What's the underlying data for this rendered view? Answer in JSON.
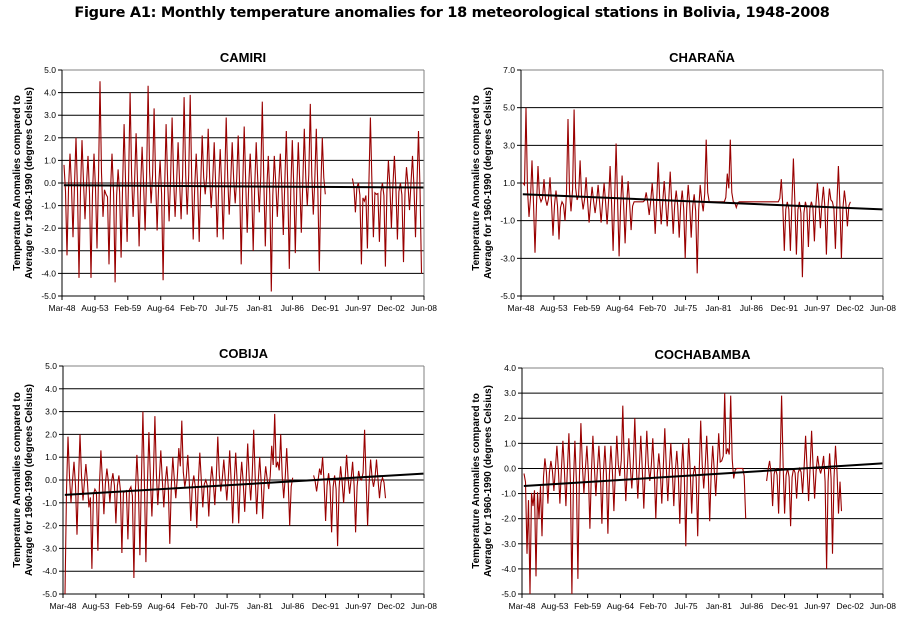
{
  "figure_title": "Figure A1: Monthly temperature anomalies for 18 meteorological stations in Bolivia, 1948-2008",
  "colors": {
    "series": "#990000",
    "trend": "#000000",
    "grid": "#000000",
    "frame": "#808080"
  },
  "chart_data": [
    {
      "type": "line",
      "title": "CAMIRI",
      "ylabel": [
        "Temperature Anomalies compared to",
        "Average for 1960-1990 (degrees Celsius)"
      ],
      "xlabel": "",
      "x_ticks": [
        "Mar-48",
        "Aug-53",
        "Feb-59",
        "Aug-64",
        "Feb-70",
        "Jul-75",
        "Jan-81",
        "Jul-86",
        "Dec-91",
        "Jun-97",
        "Dec-02",
        "Jun-08"
      ],
      "x_range": [
        "Mar-48",
        "Jun-08"
      ],
      "ylim": [
        -5.0,
        5.0
      ],
      "y_ticks": [
        "5.0",
        "4.0",
        "3.0",
        "2.0",
        "1.0",
        "0.0",
        "-1.0",
        "-2.0",
        "-3.0",
        "-4.0",
        "-5.0"
      ],
      "grid": true,
      "series": [
        {
          "name": "Monthly anomaly",
          "x_start_year": 1948.5,
          "step_years": 0.5,
          "values": [
            0.8,
            -3.2,
            1.3,
            -2.4,
            2.0,
            -4.2,
            1.9,
            -1.6,
            1.2,
            -4.2,
            1.3,
            -2.9,
            4.5,
            -1.5,
            -0.5,
            -3.6,
            1.3,
            -4.4,
            0.6,
            -3.3,
            2.6,
            -2.6,
            4.0,
            -1.5,
            2.2,
            -2.8,
            1.6,
            -2.1,
            4.3,
            -0.9,
            3.3,
            -2.1,
            1.0,
            -4.3,
            2.6,
            -1.7,
            2.9,
            -1.5,
            1.8,
            -1.6,
            3.8,
            -1.4,
            3.9,
            -2.5,
            1.3,
            -2.6,
            2.1,
            -0.5,
            2.4,
            -1.1,
            1.8,
            -2.4,
            1.5,
            -2.5,
            2.9,
            -1.4,
            1.8,
            -0.9,
            2.1,
            -3.6,
            2.5,
            -2.2,
            1.3,
            -3.0,
            1.8,
            -1.3,
            3.6,
            -2.8,
            1.2,
            -4.8,
            1.2,
            -1.5,
            1.3,
            -2.3,
            2.3,
            -3.8,
            1.9,
            -3.1,
            1.8,
            -2.2,
            2.4,
            -1.0,
            3.5,
            -1.4,
            2.4,
            -3.9,
            2.0,
            -0.5,
            null,
            null,
            null,
            null,
            null,
            null,
            null,
            null,
            0.2,
            -1.3,
            0.0,
            -3.6,
            -0.8,
            -2.9,
            2.9,
            -2.4,
            -0.5,
            -2.6,
            0.0,
            -3.7,
            1.0,
            -2.0,
            1.2,
            -2.5,
            0.0,
            -3.5,
            0.7,
            -1.2,
            1.2,
            -2.4,
            2.3,
            -4.0,
            1.8,
            -4.3,
            0.3,
            -3.1,
            -2.5
          ]
        }
      ],
      "trend": {
        "start": -0.1,
        "end": -0.2
      }
    },
    {
      "type": "line",
      "title": "CHARAÑA",
      "ylabel": [
        "Temperature Anomalies compared to",
        "Average for 1960-1990 (degrees Celsius)"
      ],
      "xlabel": "",
      "x_ticks": [
        "Mar-48",
        "Aug-53",
        "Feb-59",
        "Aug-64",
        "Feb-70",
        "Jul-75",
        "Jan-81",
        "Jul-86",
        "Dec-91",
        "Jun-97",
        "Dec-02",
        "Jun-08"
      ],
      "x_range": [
        "Mar-48",
        "Jun-08"
      ],
      "ylim": [
        -5.0,
        7.0
      ],
      "y_ticks": [
        "7.0",
        "5.0",
        "3.0",
        "1.0",
        "-1.0",
        "-3.0",
        "-5.0"
      ],
      "grid": true,
      "series": [
        {
          "name": "Monthly anomaly",
          "x_start_year": 1948.5,
          "step_years": 0.5,
          "values": [
            1.0,
            5.0,
            -0.8,
            2.2,
            -2.7,
            1.9,
            0.0,
            1.2,
            -0.2,
            1.3,
            -1.8,
            0.6,
            -2.0,
            0.0,
            -1.0,
            4.4,
            -0.5,
            4.9,
            0.1,
            2.2,
            -0.4,
            1.3,
            -1.1,
            0.8,
            -0.6,
            0.9,
            -1.1,
            1.0,
            -1.2,
            1.9,
            -2.6,
            3.1,
            -2.9,
            1.4,
            -2.2,
            1.1,
            -1.5,
            0.0,
            0.0,
            0.0,
            0.0,
            0.5,
            -0.7,
            1.0,
            -1.7,
            2.1,
            -1.2,
            1.1,
            -1.3,
            1.6,
            -1.7,
            0.6,
            -1.9,
            0.6,
            -3.0,
            0.9,
            -1.9,
            0.4,
            -3.8,
            0.9,
            -0.5,
            3.3,
            0.0,
            0.0,
            0.0,
            0.0,
            0.0,
            0.0,
            1.5,
            3.3,
            0.0,
            -0.3,
            0.0,
            0.0,
            0.0,
            0.0,
            0.0,
            0.0,
            0.0,
            0.0,
            0.0,
            0.0,
            0.0,
            0.0,
            0.0,
            0.0,
            1.2,
            -2.6,
            0.0,
            -2.6,
            2.3,
            -2.8,
            0.0,
            -4.0,
            0.0,
            -2.4,
            0.0,
            -2.1,
            1.0,
            -1.4,
            0.8,
            -2.8,
            0.7,
            0.0,
            -2.5,
            1.9,
            -3.0,
            0.6,
            -1.3,
            0.0
          ]
        }
      ],
      "trend": {
        "start": 0.4,
        "end": -0.4
      }
    },
    {
      "type": "line",
      "title": "COBIJA",
      "ylabel": [
        "Temperature Anomalies compared to",
        "Average for 1960-1990 (degrees Celsius)"
      ],
      "xlabel": "",
      "x_ticks": [
        "Mar-48",
        "Aug-53",
        "Feb-59",
        "Aug-64",
        "Feb-70",
        "Jul-75",
        "Jan-81",
        "Jul-86",
        "Dec-91",
        "Jun-97",
        "Dec-02",
        "Jun-08"
      ],
      "x_range": [
        "Mar-48",
        "Jun-08"
      ],
      "ylim": [
        -5.0,
        5.0
      ],
      "y_ticks": [
        "5.0",
        "4.0",
        "3.0",
        "2.0",
        "1.0",
        "0.0",
        "-1.0",
        "-2.0",
        "-3.0",
        "-4.0",
        "-5.0"
      ],
      "grid": true,
      "series": [
        {
          "name": "Monthly anomaly",
          "x_start_year": 1948.5,
          "step_years": 0.5,
          "values": [
            -5.0,
            1.9,
            -1.0,
            0.8,
            -2.4,
            2.0,
            -0.9,
            0.7,
            -1.2,
            -3.9,
            -0.4,
            -3.1,
            1.3,
            -1.5,
            0.5,
            -1.0,
            0.3,
            -1.9,
            0.2,
            -3.2,
            -0.5,
            -2.6,
            -0.3,
            -4.3,
            1.1,
            -3.3,
            3.0,
            -3.6,
            2.1,
            -1.6,
            2.8,
            -1.1,
            1.3,
            -1.2,
            0.6,
            -2.8,
            1.0,
            -0.8,
            1.4,
            2.6,
            -0.3,
            1.1,
            -1.8,
            0.2,
            -2.1,
            1.2,
            -1.2,
            0.0,
            -1.6,
            0.6,
            -1.1,
            1.9,
            -0.5,
            0.9,
            -0.9,
            1.3,
            -1.9,
            1.2,
            -1.9,
            0.8,
            -1.4,
            1.6,
            -0.9,
            2.2,
            -1.5,
            1.0,
            -1.7,
            0.6,
            -0.4,
            1.5,
            2.9,
            0.8,
            2.0,
            -0.8,
            1.4,
            -2.0,
            0.1,
            null,
            null,
            null,
            null,
            null,
            null,
            0.2,
            -0.5,
            0.5,
            1.0,
            -1.8,
            0.3,
            -2.3,
            0.2,
            -2.9,
            0.6,
            -1.0,
            1.1,
            -0.6,
            0.8,
            -2.3,
            0.4,
            0.0,
            2.2,
            -2.0,
            0.9,
            -0.3,
            0.9,
            -0.8,
            0.1,
            -0.8
          ]
        }
      ],
      "trend": {
        "start": -0.65,
        "end": 0.28
      }
    },
    {
      "type": "line",
      "title": "COCHABAMBA",
      "ylabel": [
        "Temperature Anomalies compared to",
        "Average for 1960-1990 (degrees Celsius)"
      ],
      "xlabel": "",
      "x_ticks": [
        "Mar-48",
        "Aug-53",
        "Feb-59",
        "Aug-64",
        "Feb-70",
        "Jul-75",
        "Jan-81",
        "Jul-86",
        "Dec-91",
        "Jun-97",
        "Dec-02",
        "Jun-08"
      ],
      "x_range": [
        "Mar-48",
        "Jun-08"
      ],
      "ylim": [
        -5.0,
        4.0
      ],
      "y_ticks": [
        "4.0",
        "3.0",
        "2.0",
        "1.0",
        "0.0",
        "-1.0",
        "-2.0",
        "-3.0",
        "-4.0",
        "-5.0"
      ],
      "grid": true,
      "series": [
        {
          "name": "Monthly anomaly",
          "x_start_year": 1948.5,
          "step_years": 0.5,
          "values": [
            -0.2,
            -3.4,
            -5.0,
            -1.5,
            -4.3,
            -2.0,
            -2.7,
            0.4,
            -1.4,
            0.3,
            -0.9,
            0.9,
            -1.4,
            1.1,
            -1.5,
            1.4,
            -5.0,
            1.1,
            -4.4,
            1.8,
            -1.0,
            0.9,
            -2.4,
            1.3,
            -1.1,
            0.9,
            -2.2,
            0.9,
            -2.6,
            0.9,
            -1.7,
            1.3,
            -0.3,
            2.5,
            -1.3,
            1.2,
            -0.8,
            2.0,
            -1.2,
            1.3,
            -1.6,
            1.5,
            -0.5,
            1.2,
            -2.0,
            0.6,
            -1.4,
            1.6,
            -1.3,
            1.0,
            -1.5,
            0.7,
            -2.2,
            1.0,
            -3.1,
            1.2,
            -1.8,
            0.1,
            -2.7,
            1.9,
            -0.8,
            1.3,
            -2.1,
            0.9,
            -1.1,
            1.4,
            0.3,
            3.0,
            0.8,
            2.9,
            -0.4,
            0.0,
            0.0,
            0.0,
            -2.0,
            null,
            null,
            null,
            null,
            null,
            null,
            -0.5,
            0.3,
            -1.5,
            0.0,
            -1.8,
            2.9,
            -1.8,
            0.0,
            -2.3,
            0.0,
            -1.2,
            0.0,
            -1.0,
            1.3,
            -1.3,
            1.5,
            -1.2,
            0.5,
            -0.2,
            0.5,
            -4.0,
            0.6,
            -3.4,
            0.9,
            -1.8,
            -1.7
          ]
        }
      ],
      "trend": {
        "start": -0.7,
        "end": 0.2
      }
    }
  ]
}
